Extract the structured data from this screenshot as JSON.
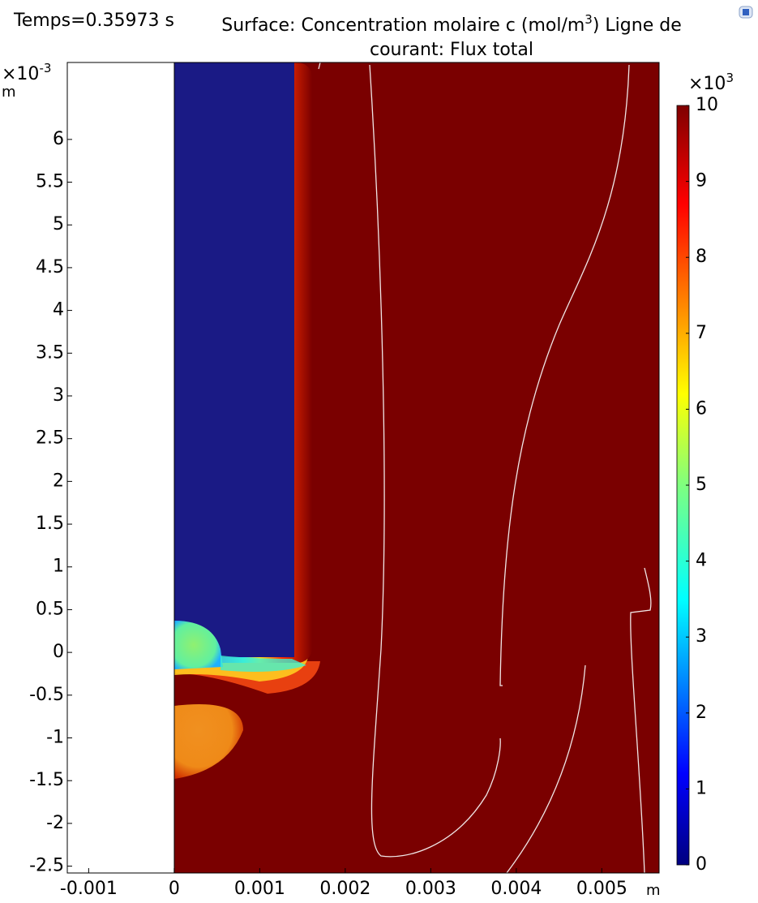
{
  "chart_data": {
    "type": "surface",
    "time_label": "Temps=0.35973 s",
    "title": [
      "Surface: Concentration molaire c (mol/m",
      "3",
      ")  Ligne de",
      "courant: Flux total"
    ],
    "x_unit": "m",
    "y_unit": "m",
    "y_multiplier": [
      "×10",
      "-3"
    ],
    "xlim": [
      -0.00125,
      0.00567
    ],
    "xticks": [
      -0.001,
      0,
      0.001,
      0.002,
      0.003,
      0.004,
      0.005
    ],
    "ylim": [
      -0.00258,
      0.0069
    ],
    "yticks": [
      {
        "value": -0.0025,
        "label": "-2.5"
      },
      {
        "value": -0.002,
        "label": "-2"
      },
      {
        "value": -0.0015,
        "label": "-1.5"
      },
      {
        "value": -0.001,
        "label": "-1"
      },
      {
        "value": -0.0005,
        "label": "-0.5"
      },
      0,
      {
        "value": 0.0005,
        "label": "0.5"
      },
      {
        "value": 0.001,
        "label": "1"
      },
      {
        "value": 0.0015,
        "label": "1.5"
      },
      {
        "value": 0.002,
        "label": "2"
      },
      {
        "value": 0.0025,
        "label": "2.5"
      },
      {
        "value": 0.003,
        "label": "3"
      },
      {
        "value": 0.0035,
        "label": "3.5"
      },
      {
        "value": 0.004,
        "label": "4"
      },
      {
        "value": 0.0045,
        "label": "4.5"
      },
      {
        "value": 0.005,
        "label": "5"
      },
      {
        "value": 0.0055,
        "label": "5.5"
      },
      {
        "value": 0.006,
        "label": "6"
      }
    ],
    "colorbar": {
      "multiplier": [
        "×10",
        "3"
      ],
      "lim": [
        0,
        10
      ],
      "ticks": [
        0,
        1,
        2,
        3,
        4,
        5,
        6,
        7,
        8,
        9,
        10
      ],
      "colormap": "jet"
    }
  }
}
